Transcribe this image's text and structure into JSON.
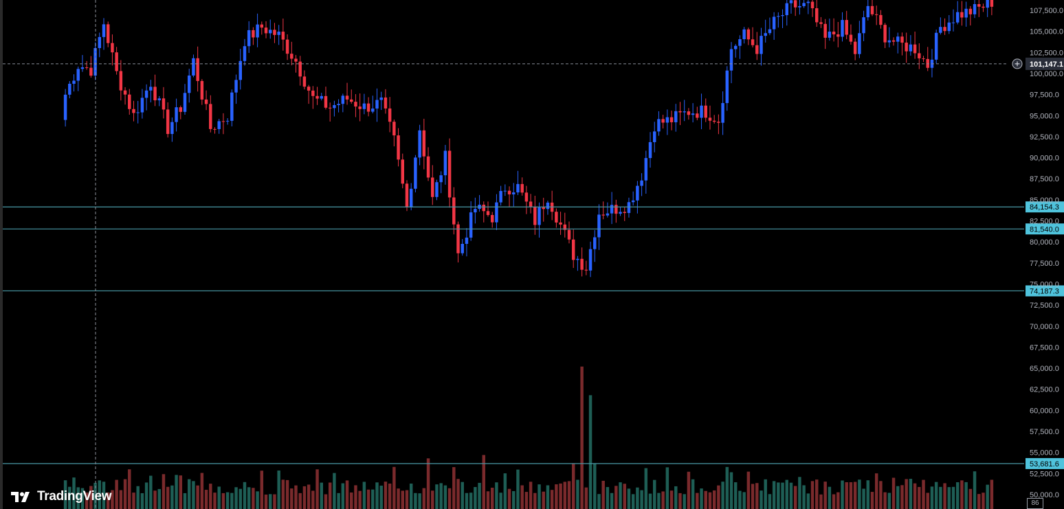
{
  "chart_data": {
    "type": "candlestick",
    "symbol_axis": "price",
    "ylim": [
      49500,
      108750
    ],
    "y_ticks": [
      "107,500.0",
      "105,000.0",
      "102,500.0",
      "100,000.0",
      "97,500.0",
      "95,000.0",
      "92,500.0",
      "90,000.0",
      "87,500.0",
      "85,000.0",
      "82,500.0",
      "80,000.0",
      "77,500.0",
      "75,000.0",
      "72,500.0",
      "70,000.0",
      "67,500.0",
      "65,000.0",
      "62,500.0",
      "60,000.0",
      "57,500.0",
      "55,000.0",
      "52,500.0",
      "50,000.0"
    ],
    "horizontal_levels": [
      {
        "value": 84154.3,
        "label": "84,154.3"
      },
      {
        "value": 81540.0,
        "label": "81,540.0"
      },
      {
        "value": 74187.3,
        "label": "74,187.3"
      },
      {
        "value": 53681.6,
        "label": "53,681.6"
      }
    ],
    "current_price": {
      "value": 101147.1,
      "label": "101,147.1"
    },
    "volume_badge": "86",
    "colors": {
      "up": "#2962ff",
      "down": "#f23645",
      "level": "#4a9aa8",
      "level_tag": "#4fc3dc",
      "vol_up": "#1e5e55",
      "vol_down": "#7a2a2c"
    },
    "anchors": [
      [
        0,
        97500
      ],
      [
        3,
        101000
      ],
      [
        6,
        100500
      ],
      [
        9,
        106000
      ],
      [
        12,
        100000
      ],
      [
        16,
        95000
      ],
      [
        20,
        99000
      ],
      [
        24,
        93500
      ],
      [
        27,
        96000
      ],
      [
        30,
        101500
      ],
      [
        34,
        93500
      ],
      [
        38,
        95000
      ],
      [
        42,
        104000
      ],
      [
        46,
        105500
      ],
      [
        50,
        104500
      ],
      [
        54,
        101500
      ],
      [
        58,
        97000
      ],
      [
        62,
        96000
      ],
      [
        66,
        97000
      ],
      [
        70,
        96000
      ],
      [
        74,
        96500
      ],
      [
        77,
        92000
      ],
      [
        80,
        84000
      ],
      [
        83,
        93500
      ],
      [
        86,
        85000
      ],
      [
        89,
        90000
      ],
      [
        92,
        78500
      ],
      [
        96,
        84000
      ],
      [
        100,
        83000
      ],
      [
        103,
        86500
      ],
      [
        106,
        86500
      ],
      [
        110,
        82500
      ],
      [
        113,
        85500
      ],
      [
        116,
        82000
      ],
      [
        119,
        78500
      ],
      [
        122,
        77000
      ],
      [
        125,
        83500
      ],
      [
        129,
        84000
      ],
      [
        132,
        84500
      ],
      [
        135,
        88000
      ],
      [
        138,
        94000
      ],
      [
        142,
        94500
      ],
      [
        146,
        95500
      ],
      [
        150,
        95500
      ],
      [
        153,
        94500
      ],
      [
        156,
        103000
      ],
      [
        159,
        104500
      ],
      [
        162,
        103000
      ],
      [
        166,
        106000
      ],
      [
        170,
        108000
      ],
      [
        174,
        108000
      ],
      [
        178,
        104000
      ],
      [
        182,
        105500
      ],
      [
        185,
        102500
      ],
      [
        188,
        108000
      ],
      [
        192,
        104500
      ],
      [
        195,
        103500
      ],
      [
        199,
        103000
      ],
      [
        202,
        101000
      ],
      [
        205,
        105500
      ],
      [
        209,
        107000
      ],
      [
        213,
        107500
      ],
      [
        217,
        108500
      ]
    ],
    "volume_highlights": [
      {
        "index": 121,
        "value": 65200
      },
      {
        "index": 123,
        "value": 61800
      },
      {
        "index": 85,
        "value": 54300
      },
      {
        "index": 98,
        "value": 54700
      },
      {
        "index": 119,
        "value": 53700
      },
      {
        "index": 124,
        "value": 53700
      },
      {
        "index": 15,
        "value": 53000
      }
    ]
  },
  "branding": {
    "logo_text": "TradingView"
  }
}
